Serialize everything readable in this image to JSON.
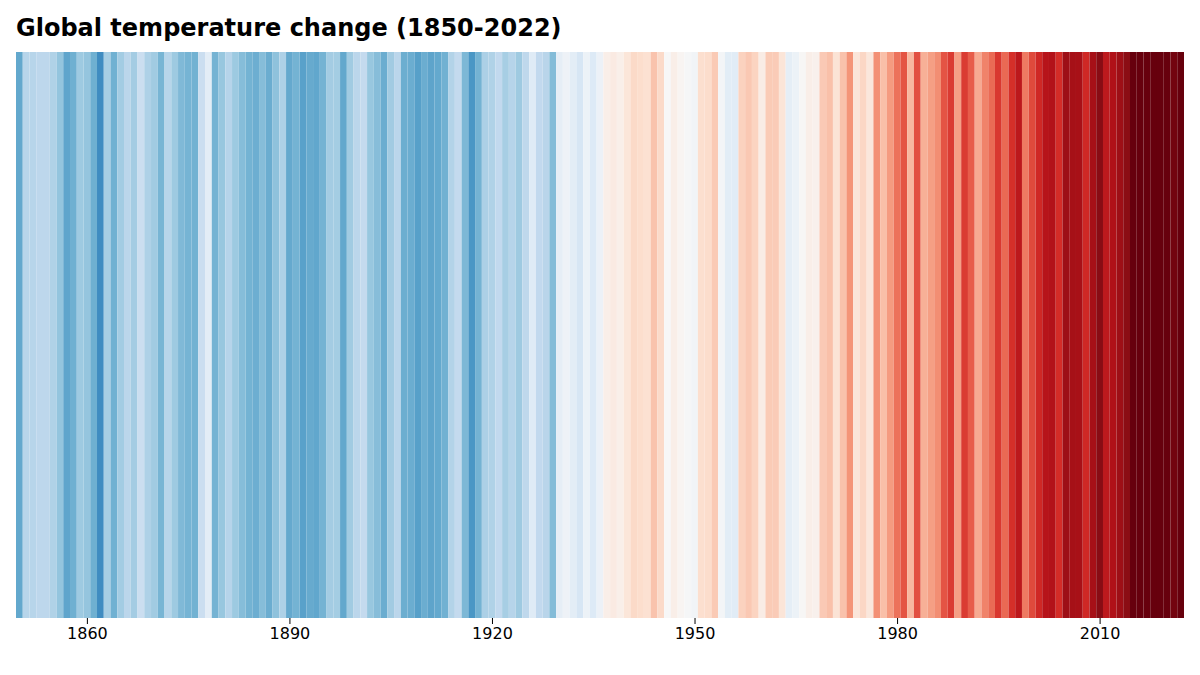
{
  "chart_data": {
    "type": "heatmap",
    "title": "Global temperature change (1850-2022)",
    "x": [
      1850,
      1851,
      1852,
      1853,
      1854,
      1855,
      1856,
      1857,
      1858,
      1859,
      1860,
      1861,
      1862,
      1863,
      1864,
      1865,
      1866,
      1867,
      1868,
      1869,
      1870,
      1871,
      1872,
      1873,
      1874,
      1875,
      1876,
      1877,
      1878,
      1879,
      1880,
      1881,
      1882,
      1883,
      1884,
      1885,
      1886,
      1887,
      1888,
      1889,
      1890,
      1891,
      1892,
      1893,
      1894,
      1895,
      1896,
      1897,
      1898,
      1899,
      1900,
      1901,
      1902,
      1903,
      1904,
      1905,
      1906,
      1907,
      1908,
      1909,
      1910,
      1911,
      1912,
      1913,
      1914,
      1915,
      1916,
      1917,
      1918,
      1919,
      1920,
      1921,
      1922,
      1923,
      1924,
      1925,
      1926,
      1927,
      1928,
      1929,
      1930,
      1931,
      1932,
      1933,
      1934,
      1935,
      1936,
      1937,
      1938,
      1939,
      1940,
      1941,
      1942,
      1943,
      1944,
      1945,
      1946,
      1947,
      1948,
      1949,
      1950,
      1951,
      1952,
      1953,
      1954,
      1955,
      1956,
      1957,
      1958,
      1959,
      1960,
      1961,
      1962,
      1963,
      1964,
      1965,
      1966,
      1967,
      1968,
      1969,
      1970,
      1971,
      1972,
      1973,
      1974,
      1975,
      1976,
      1977,
      1978,
      1979,
      1980,
      1981,
      1982,
      1983,
      1984,
      1985,
      1986,
      1987,
      1988,
      1989,
      1990,
      1991,
      1992,
      1993,
      1994,
      1995,
      1996,
      1997,
      1998,
      1999,
      2000,
      2001,
      2002,
      2003,
      2004,
      2005,
      2006,
      2007,
      2008,
      2009,
      2010,
      2011,
      2012,
      2013,
      2014,
      2015,
      2016,
      2017,
      2018,
      2019,
      2020,
      2021,
      2022
    ],
    "values": [
      -0.416,
      -0.223,
      -0.223,
      -0.208,
      -0.208,
      -0.238,
      -0.303,
      -0.426,
      -0.388,
      -0.282,
      -0.302,
      -0.388,
      -0.514,
      -0.261,
      -0.384,
      -0.27,
      -0.213,
      -0.268,
      -0.168,
      -0.244,
      -0.274,
      -0.366,
      -0.222,
      -0.281,
      -0.349,
      -0.37,
      -0.38,
      -0.168,
      -0.071,
      -0.373,
      -0.294,
      -0.224,
      -0.283,
      -0.334,
      -0.376,
      -0.393,
      -0.335,
      -0.397,
      -0.314,
      -0.243,
      -0.411,
      -0.374,
      -0.442,
      -0.408,
      -0.421,
      -0.373,
      -0.268,
      -0.267,
      -0.418,
      -0.274,
      -0.213,
      -0.193,
      -0.295,
      -0.333,
      -0.397,
      -0.273,
      -0.213,
      -0.395,
      -0.398,
      -0.447,
      -0.397,
      -0.43,
      -0.414,
      -0.383,
      -0.233,
      -0.193,
      -0.356,
      -0.48,
      -0.375,
      -0.248,
      -0.239,
      -0.196,
      -0.261,
      -0.224,
      -0.28,
      -0.205,
      -0.085,
      -0.196,
      -0.218,
      -0.34,
      -0.063,
      -0.033,
      -0.072,
      -0.117,
      -0.039,
      -0.094,
      -0.04,
      0.037,
      0.051,
      0.033,
      0.071,
      0.112,
      0.1,
      0.09,
      0.176,
      0.111,
      0.0,
      0.036,
      0.011,
      -0.009,
      -0.02,
      0.097,
      0.102,
      0.156,
      -0.015,
      -0.074,
      -0.081,
      0.134,
      0.161,
      0.128,
      0.043,
      0.154,
      0.152,
      0.075,
      -0.064,
      -0.039,
      0.004,
      0.035,
      0.027,
      0.158,
      0.186,
      0.082,
      0.178,
      0.281,
      0.073,
      0.119,
      0.065,
      0.29,
      0.187,
      0.268,
      0.343,
      0.395,
      0.204,
      0.404,
      0.222,
      0.259,
      0.293,
      0.396,
      0.441,
      0.258,
      0.44,
      0.38,
      0.234,
      0.313,
      0.356,
      0.447,
      0.359,
      0.463,
      0.54,
      0.329,
      0.415,
      0.484,
      0.556,
      0.566,
      0.468,
      0.617,
      0.595,
      0.591,
      0.483,
      0.596,
      0.661,
      0.537,
      0.573,
      0.614,
      0.657,
      0.876,
      1.001,
      0.826,
      0.798,
      0.92,
      1.022,
      0.718,
      0.891
    ],
    "xticks": [
      1860,
      1890,
      1920,
      1950,
      1980,
      2010
    ],
    "colormap": [
      "#08306b",
      "#1461a8",
      "#2e7ebc",
      "#4e9ac6",
      "#74b3d3",
      "#9ecae1",
      "#c6dbef",
      "#ddeaf6",
      "#f7f7f7",
      "#fce0d0",
      "#f9bfa8",
      "#f49579",
      "#e8604c",
      "#d42c27",
      "#b51219",
      "#8b0d14",
      "#67000d"
    ],
    "color_domain": [
      -0.75,
      0.75
    ],
    "tick_labels": "x"
  }
}
